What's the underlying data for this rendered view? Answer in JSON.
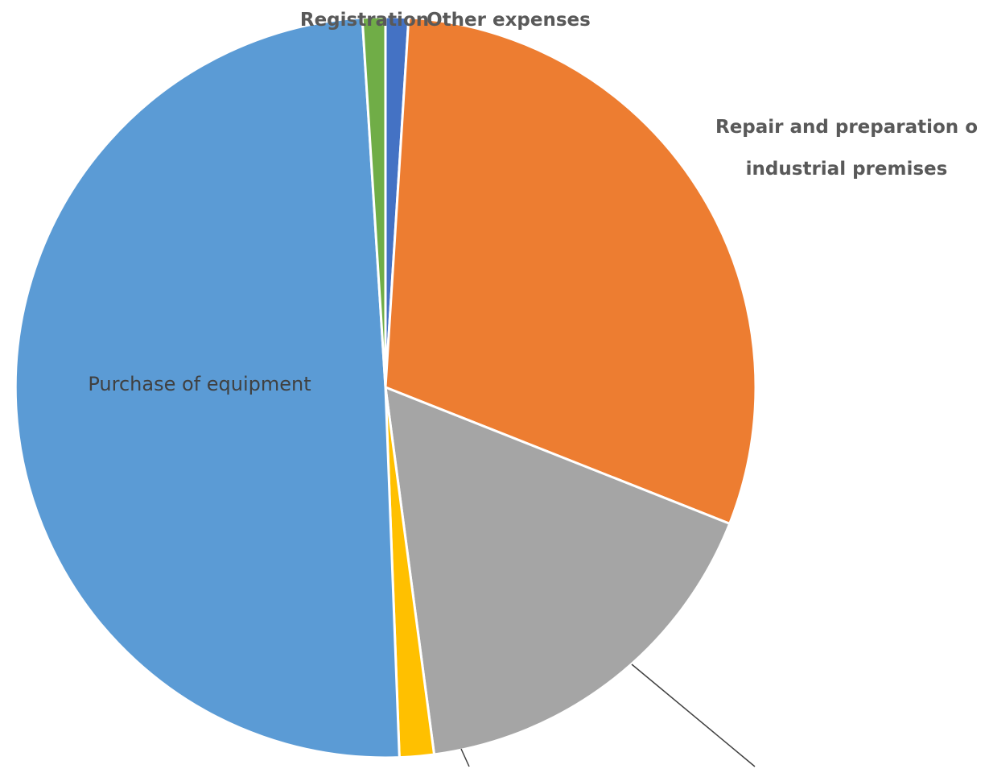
{
  "chart_data": {
    "type": "pie",
    "title": "",
    "start_angle_deg": 0,
    "direction": "clockwise",
    "slices": [
      {
        "label": "Other expenses",
        "label_lines": [
          "Other expenses"
        ],
        "value": 1.0,
        "color": "#4472C4"
      },
      {
        "label": "Repair and preparation of industrial premises",
        "label_lines": [
          "Repair and preparation o",
          "industrial premises"
        ],
        "value": 30.0,
        "color": "#ED7D31"
      },
      {
        "label": "",
        "label_lines": [],
        "value": 16.9,
        "color": "#A5A5A5"
      },
      {
        "label": "",
        "label_lines": [],
        "value": 1.5,
        "color": "#FFC000"
      },
      {
        "label": "Purchase of equipment",
        "label_lines": [
          "Purchase of equipment"
        ],
        "value": 49.6,
        "color": "#5B9BD5"
      },
      {
        "label": "Registration",
        "label_lines": [
          "Registration"
        ],
        "value": 1.0,
        "color": "#70AD47"
      }
    ],
    "slice_border_color": "#FFFFFF",
    "leader_line_color": "#404040",
    "label_color_inside": "#404040",
    "label_color_outside": "#595959",
    "legend": "none"
  }
}
